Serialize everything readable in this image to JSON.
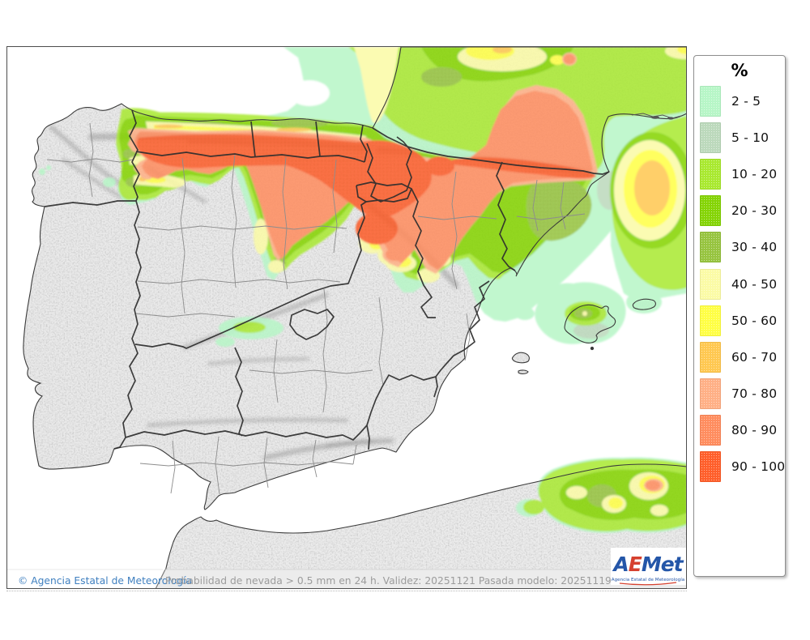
{
  "legend": {
    "title": "%",
    "items": [
      {
        "range": "2 - 5",
        "color": "#b7f6c7"
      },
      {
        "range": "5 - 10",
        "color": "#bcd9bc"
      },
      {
        "range": "10 - 20",
        "color": "#a9e930"
      },
      {
        "range": "20 - 30",
        "color": "#85d406"
      },
      {
        "range": "30 - 40",
        "color": "#97c440"
      },
      {
        "range": "40 - 50",
        "color": "#fbfba6"
      },
      {
        "range": "50 - 60",
        "color": "#ffff45"
      },
      {
        "range": "60 - 70",
        "color": "#ffc851"
      },
      {
        "range": "70 - 80",
        "color": "#ffb086"
      },
      {
        "range": "80 - 90",
        "color": "#ff8d5f"
      },
      {
        "range": "90 - 100",
        "color": "#ff5f2b"
      }
    ]
  },
  "footer": {
    "copyright": "© Agencia Estatal de Meteorología",
    "caption": "Probabilidad de nevada > 0.5 mm en 24 h. Validez: 20251121 Pasada modelo: 2025111900"
  },
  "logo": {
    "a": "A",
    "e": "E",
    "met": "Met",
    "subtitle": "Agencia Estatal de Meteorología"
  }
}
